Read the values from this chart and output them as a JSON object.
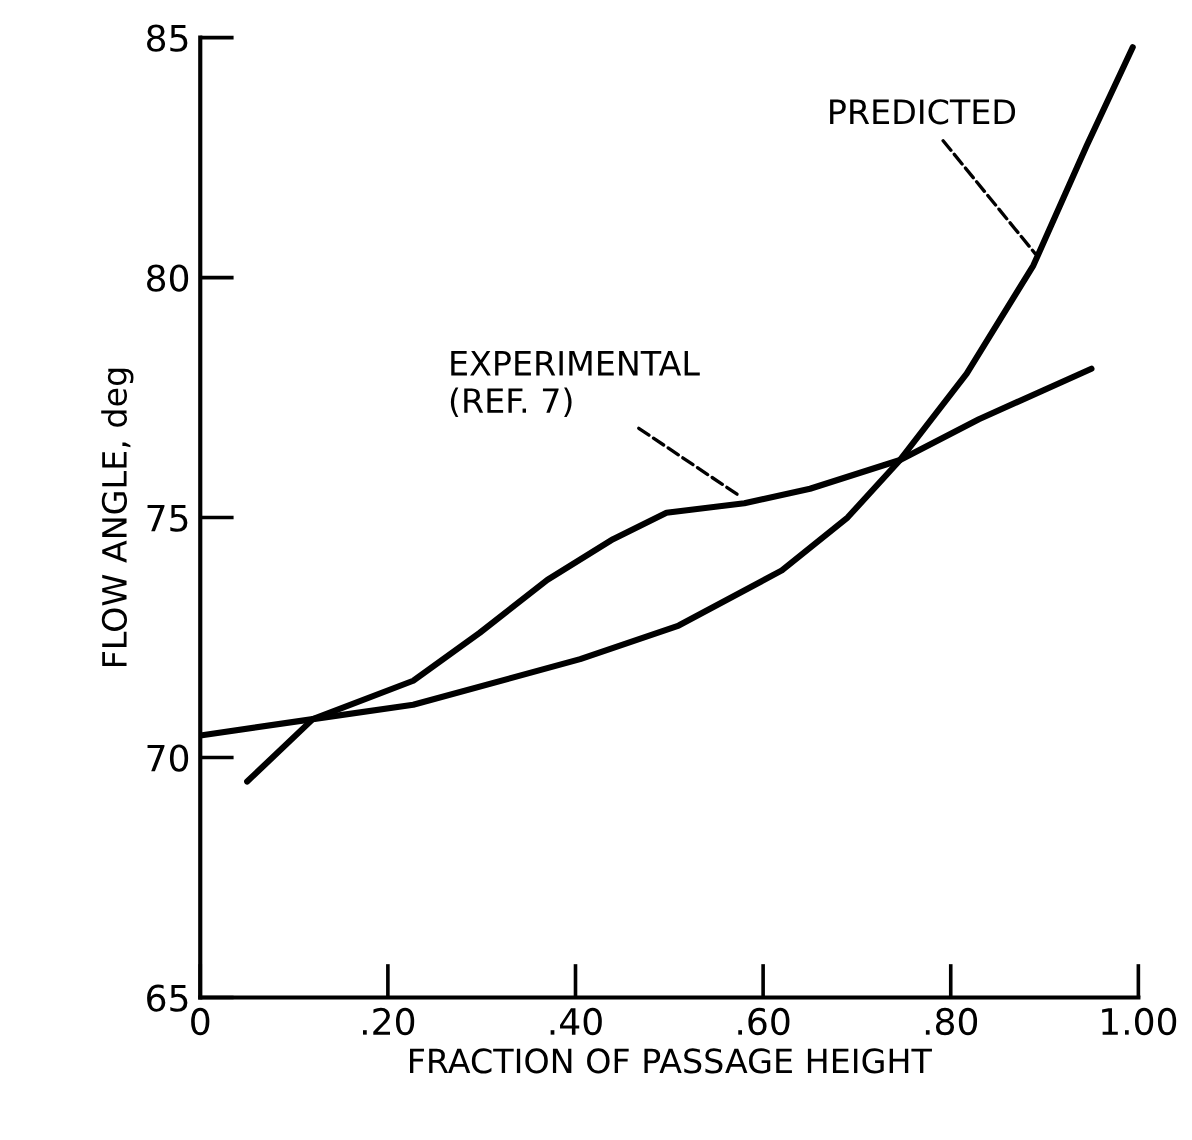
{
  "chart_data": {
    "type": "line",
    "xlabel": "FRACTION OF PASSAGE HEIGHT",
    "ylabel": "FLOW ANGLE, deg",
    "xlim": [
      0,
      1
    ],
    "ylim": [
      65,
      85
    ],
    "xticks": [
      0,
      {
        "value": 0.2,
        "label": ".20"
      },
      {
        "value": 0.4,
        "label": ".40"
      },
      {
        "value": 0.6,
        "label": ".60"
      },
      {
        "value": 0.8,
        "label": ".80"
      },
      {
        "value": 1.0,
        "label": "1.00"
      }
    ],
    "yticks": [
      65,
      70,
      75,
      80,
      85
    ],
    "grid": false,
    "legend": false,
    "marker": "none",
    "line_style": "solid",
    "series": [
      {
        "color": "#000000",
        "x": [
          0,
          0.12,
          0.227,
          0.405,
          0.51,
          0.62,
          0.69,
          0.746,
          0.817,
          0.888,
          0.945,
          0.994
        ],
        "values": [
          70.46,
          70.8,
          71.1,
          72.05,
          72.75,
          73.9,
          75.0,
          76.2,
          78.0,
          80.25,
          82.75,
          84.8
        ]
      },
      {
        "color": "#000000",
        "x": [
          0.05,
          0.12,
          0.227,
          0.298,
          0.37,
          0.44,
          0.497,
          0.58,
          0.65,
          0.746,
          0.83,
          0.95
        ],
        "values": [
          69.5,
          70.8,
          71.6,
          72.6,
          73.7,
          74.55,
          75.1,
          75.3,
          75.6,
          76.2,
          77.05,
          78.1
        ]
      }
    ],
    "annotations": [
      {
        "text": "PREDICTED",
        "x": 0.89,
        "y": 80.5
      },
      {
        "text": "EXPERIMENTAL\n(REF. 7)",
        "x": 0.575,
        "y": 75.45
      }
    ]
  }
}
